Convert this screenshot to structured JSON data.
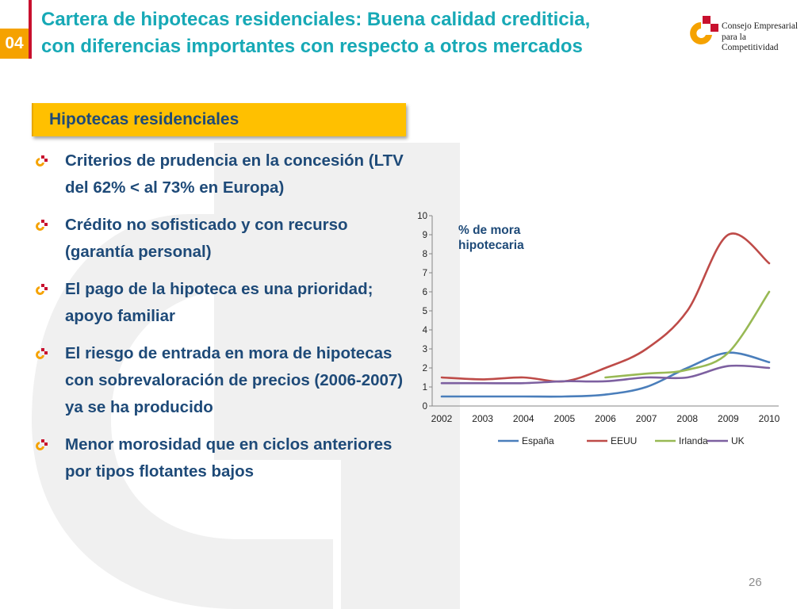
{
  "header": {
    "section_number": "04",
    "title_line1": "Cartera de hipotecas residenciales: Buena calidad crediticia,",
    "title_line2": "con diferencias importantes con respecto a otros mercados"
  },
  "logo": {
    "line1": "Consejo Empresarial",
    "line2": "para la",
    "line3": "Competitividad",
    "colors": [
      "#c8102e",
      "#f5a200"
    ]
  },
  "section": {
    "label": "Hipotecas residenciales"
  },
  "bullets": [
    "Criterios de prudencia en la concesión (LTV del 62% < al 73% en Europa)",
    "Crédito no sofisticado y con recurso (garantía personal)",
    "El pago de la hipoteca es una prioridad; apoyo familiar",
    "El riesgo de entrada en mora de hipotecas con sobrevaloración de precios (2006-2007) ya se ha producido",
    "Menor morosidad que en ciclos anteriores por tipos flotantes bajos"
  ],
  "colors": {
    "title": "#17a9b6",
    "text": "#1e4a78",
    "accent_orange": "#f5a200",
    "accent_red": "#c8102e",
    "section_fill": "#ffc000"
  },
  "chart_data": {
    "type": "line",
    "title": "% de mora hipotecaria",
    "title_lines": [
      "% de mora",
      "hipotecaria"
    ],
    "xlabel": "",
    "ylabel": "",
    "x": [
      2002,
      2003,
      2004,
      2005,
      2006,
      2007,
      2008,
      2009,
      2010
    ],
    "x_tick_labels": [
      "2002",
      "2003",
      "2004",
      "2005",
      "2006",
      "2007",
      "2008",
      "2009",
      "2010"
    ],
    "ylim": [
      0,
      10
    ],
    "y_ticks": [
      0,
      1,
      2,
      3,
      4,
      5,
      6,
      7,
      8,
      9,
      10
    ],
    "grid": false,
    "legend_position": "bottom",
    "series": [
      {
        "name": "España",
        "color": "#4a7ebb",
        "values": [
          0.5,
          0.5,
          0.5,
          0.5,
          0.6,
          1.0,
          2.0,
          2.8,
          2.3
        ]
      },
      {
        "name": "EEUU",
        "color": "#be4b48",
        "values": [
          1.5,
          1.4,
          1.5,
          1.3,
          2.0,
          3.0,
          5.0,
          9.0,
          7.5
        ]
      },
      {
        "name": "Irlanda",
        "color": "#98b954",
        "values": [
          null,
          null,
          null,
          null,
          1.5,
          1.7,
          1.9,
          2.8,
          6.0
        ]
      },
      {
        "name": "UK",
        "color": "#7d60a0",
        "values": [
          1.2,
          1.2,
          1.2,
          1.3,
          1.3,
          1.5,
          1.5,
          2.1,
          2.0
        ]
      }
    ]
  },
  "footer": {
    "page_number": "26"
  }
}
